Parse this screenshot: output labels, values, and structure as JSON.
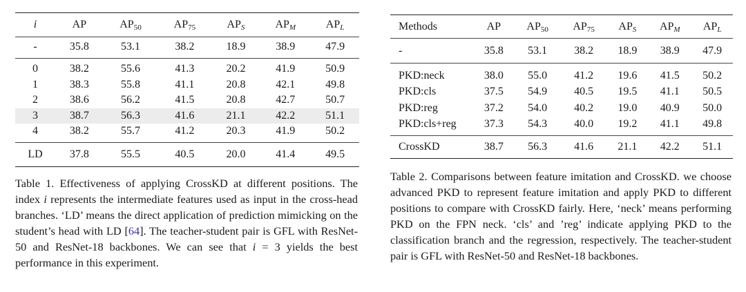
{
  "table1": {
    "header": {
      "index_var": "i",
      "ap": "AP",
      "ap50_base": "AP",
      "ap50_sub": "50",
      "ap75_base": "AP",
      "ap75_sub": "75",
      "aps_base": "AP",
      "aps_sub": "S",
      "apm_base": "AP",
      "apm_sub": "M",
      "apl_base": "AP",
      "apl_sub": "L"
    },
    "baseline": {
      "label": "-",
      "values": [
        "35.8",
        "53.1",
        "38.2",
        "18.9",
        "38.9",
        "47.9"
      ]
    },
    "rows": [
      {
        "i": "0",
        "values": [
          "38.2",
          "55.6",
          "41.3",
          "20.2",
          "41.9",
          "50.9"
        ]
      },
      {
        "i": "1",
        "values": [
          "38.3",
          "55.8",
          "41.1",
          "20.8",
          "42.1",
          "49.8"
        ]
      },
      {
        "i": "2",
        "values": [
          "38.6",
          "56.2",
          "41.5",
          "20.8",
          "42.7",
          "50.7"
        ]
      },
      {
        "i": "3",
        "values": [
          "38.7",
          "56.3",
          "41.6",
          "21.1",
          "42.2",
          "51.1"
        ]
      },
      {
        "i": "4",
        "values": [
          "38.2",
          "55.7",
          "41.2",
          "20.3",
          "41.9",
          "50.2"
        ]
      }
    ],
    "ld_row": {
      "label": "LD",
      "values": [
        "37.8",
        "55.5",
        "40.5",
        "20.0",
        "41.4",
        "49.5"
      ]
    },
    "caption": {
      "p1": "Table 1. Effectiveness of applying CrossKD at different positions. The index ",
      "var": "i",
      "p2": " represents the intermediate features used as input in the cross-head branches.  ‘LD’ means the direct application of prediction mimicking on the student’s head with LD [",
      "cite": "64",
      "p3": "].  The teacher-student pair is GFL with ResNet-50 and ResNet-18 backbones. We can see that ",
      "eq_var": "i",
      "eq_rest": " = 3",
      "p4": " yields the best performance in this experiment."
    }
  },
  "table2": {
    "header": {
      "methods": "Methods",
      "ap": "AP",
      "ap50_base": "AP",
      "ap50_sub": "50",
      "ap75_base": "AP",
      "ap75_sub": "75",
      "aps_base": "AP",
      "aps_sub": "S",
      "apm_base": "AP",
      "apm_sub": "M",
      "apl_base": "AP",
      "apl_sub": "L"
    },
    "baseline": {
      "label": "-",
      "values": [
        "35.8",
        "53.1",
        "38.2",
        "18.9",
        "38.9",
        "47.9"
      ]
    },
    "rows": [
      {
        "method": "PKD:neck",
        "values": [
          "38.0",
          "55.0",
          "41.2",
          "19.6",
          "41.5",
          "50.2"
        ]
      },
      {
        "method": "PKD:cls",
        "values": [
          "37.5",
          "54.9",
          "40.5",
          "19.5",
          "41.1",
          "50.5"
        ]
      },
      {
        "method": "PKD:reg",
        "values": [
          "37.2",
          "54.0",
          "40.2",
          "19.0",
          "40.9",
          "50.0"
        ]
      },
      {
        "method": "PKD:cls+reg",
        "values": [
          "37.3",
          "54.3",
          "40.0",
          "19.2",
          "41.1",
          "49.8"
        ]
      }
    ],
    "crosskd": {
      "method": "CrossKD",
      "values": [
        "38.7",
        "56.3",
        "41.6",
        "21.1",
        "42.2",
        "51.1"
      ]
    },
    "caption": "Table 2. Comparisons between feature imitation and CrossKD. we choose advanced PKD to represent feature imitation and apply PKD to different positions to compare with CrossKD fairly. Here, ‘neck’ means performing PKD on the FPN neck.  ‘cls’ and ’reg’ indicate applying PKD to the classification branch and the regression, respectively. The teacher-student pair is GFL with ResNet-50 and ResNet-18 backbones."
  }
}
